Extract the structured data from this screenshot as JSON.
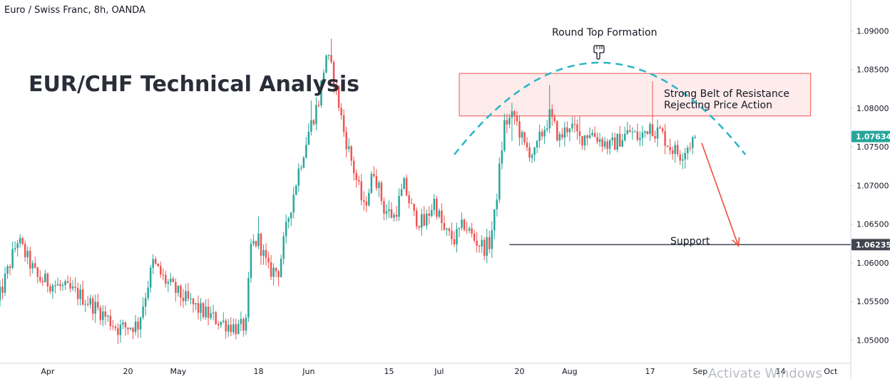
{
  "chart_data": {
    "type": "candlestick",
    "title": "Euro / Swiss Franc, 8h, OANDA",
    "overlay_title": "EUR/CHF Technical Analysis",
    "ylim": [
      1.047,
      1.094
    ],
    "y_ticks": [
      1.05,
      1.055,
      1.06,
      1.065,
      1.07,
      1.075,
      1.08,
      1.085,
      1.09
    ],
    "y_tick_labels": [
      "1.05000",
      "1.05500",
      "1.06000",
      "1.06500",
      "1.07000",
      "1.07500",
      "1.08000",
      "1.08500",
      "1.09000"
    ],
    "x_tick_labels": [
      "Apr",
      "20",
      "May",
      "18",
      "Jun",
      "15",
      "Jul",
      "20",
      "Aug",
      "17",
      "Sep",
      "14",
      "Oct"
    ],
    "x_tick_positions": [
      10,
      26,
      36,
      52,
      62,
      78,
      88,
      104,
      114,
      130,
      140,
      156,
      166
    ],
    "x_range": [
      0.5,
      170
    ],
    "current_price": {
      "value": 1.07634,
      "label": "1.07634",
      "color": "#26a69a"
    },
    "support_price": {
      "value": 1.06235,
      "label": "1.06235",
      "color": "#434651"
    },
    "anchors": [
      [
        0,
        1.0548
      ],
      [
        4,
        1.063
      ],
      [
        8,
        1.058
      ],
      [
        12,
        1.057
      ],
      [
        16,
        1.056
      ],
      [
        20,
        1.054
      ],
      [
        24,
        1.0515
      ],
      [
        28,
        1.052
      ],
      [
        31,
        1.06
      ],
      [
        33,
        1.058
      ],
      [
        36,
        1.056
      ],
      [
        40,
        1.054
      ],
      [
        44,
        1.0525
      ],
      [
        48,
        1.0515
      ],
      [
        49.6,
        1.052
      ],
      [
        50.4,
        1.062
      ],
      [
        52,
        1.063
      ],
      [
        54,
        1.059
      ],
      [
        56,
        1.059
      ],
      [
        58,
        1.066
      ],
      [
        60,
        1.072
      ],
      [
        62,
        1.077
      ],
      [
        64,
        1.081
      ],
      [
        65.5,
        1.087
      ],
      [
        67,
        1.084
      ],
      [
        69,
        1.077
      ],
      [
        71,
        1.072
      ],
      [
        73,
        1.067
      ],
      [
        75,
        1.072
      ],
      [
        77,
        1.067
      ],
      [
        79,
        1.066
      ],
      [
        81,
        1.07
      ],
      [
        83,
        1.066
      ],
      [
        85,
        1.065
      ],
      [
        87,
        1.068
      ],
      [
        89,
        1.064
      ],
      [
        91,
        1.063
      ],
      [
        93,
        1.065
      ],
      [
        95,
        1.063
      ],
      [
        97,
        1.062
      ],
      [
        98,
        1.0625
      ],
      [
        99,
        1.066
      ],
      [
        101,
        1.078
      ],
      [
        103,
        1.079
      ],
      [
        105,
        1.075
      ],
      [
        107,
        1.074
      ],
      [
        108,
        1.076
      ],
      [
        110,
        1.079
      ],
      [
        112,
        1.076
      ],
      [
        114,
        1.078
      ],
      [
        116,
        1.076
      ],
      [
        118,
        1.077
      ],
      [
        120,
        1.076
      ],
      [
        122,
        1.075
      ],
      [
        124,
        1.076
      ],
      [
        126,
        1.077
      ],
      [
        128,
        1.076
      ],
      [
        130,
        1.078
      ],
      [
        131,
        1.077
      ],
      [
        132,
        1.077
      ],
      [
        134,
        1.075
      ],
      [
        136,
        1.074
      ],
      [
        138,
        1.0755
      ],
      [
        139,
        1.0763
      ]
    ],
    "spikes": [
      {
        "i": 52.0,
        "delta": 0.003
      },
      {
        "i": 62.5,
        "delta": 0.003
      },
      {
        "i": 66.5,
        "delta": 0.004
      },
      {
        "i": 102.5,
        "delta": -0.003
      },
      {
        "i": 110.0,
        "delta": 0.004
      },
      {
        "i": 116.0,
        "delta": 0.003
      },
      {
        "i": 130.5,
        "delta": 0.006
      },
      {
        "i": 131.5,
        "delta": -0.002
      }
    ],
    "annotations": {
      "resistance_text_1": "Strong Belt of Resistance",
      "resistance_text_2": "Rejecting Price Action",
      "round_top_label": "Round Top Formation",
      "support_label": "Support",
      "resistance_zone": {
        "x_start": 92,
        "x_end": 162,
        "y_low": 1.079,
        "y_high": 1.0845
      },
      "round_top_arc": {
        "center_x": 120,
        "half_width": 29,
        "peak": 1.0859,
        "base": 1.074
      }
    },
    "grid": false,
    "legend": "none"
  },
  "watermark": "Activate Windows",
  "colors": {
    "up": "#26a69a",
    "down": "#ef5350",
    "resistance_fill": "#fde4e4",
    "resistance_stroke": "#ef5350",
    "arc": "#26b6c6",
    "arrow": "#ef4b3b",
    "support_line": "#434651",
    "axis": "#d1d4dc"
  },
  "icons": {
    "pointer": "pointing-hand-down-icon"
  }
}
